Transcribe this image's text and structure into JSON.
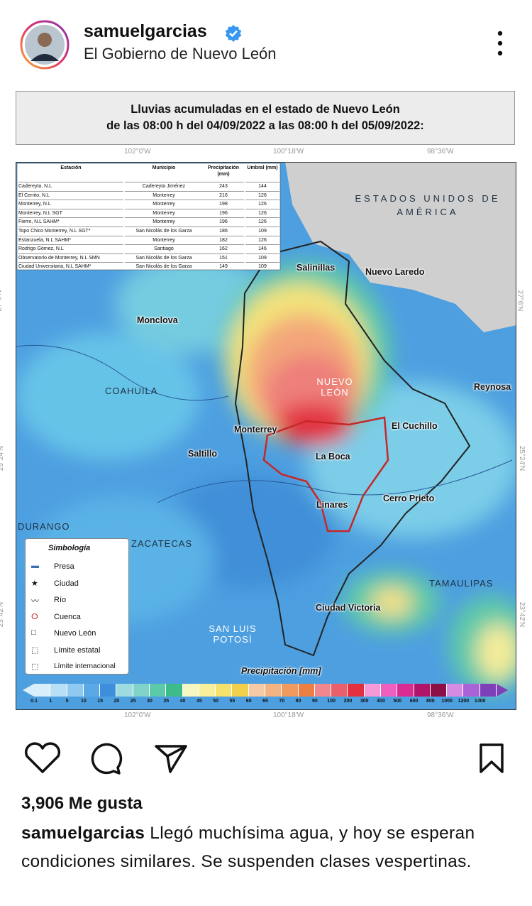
{
  "header": {
    "username": "samuelgarcias",
    "subtitle": "El Gobierno de Nuevo León"
  },
  "map": {
    "title": [
      "Lluvias acumuladas en el estado de Nuevo León",
      "de las 08:00 h del 04/09/2022 a las 08:00 h del 05/09/2022:"
    ],
    "longitudes": [
      "102°0'W",
      "100°18'W",
      "98°36'W"
    ],
    "latitudes": [
      "27°6'N",
      "25°24'N",
      "23°42'N"
    ],
    "table": {
      "columns": [
        "Estación",
        "Municipio",
        "Precipitación (mm)",
        "Umbral (mm)"
      ],
      "rows": [
        [
          "Cadereyta, N.L",
          "Cadereyta Jiménez",
          243,
          144
        ],
        [
          "El Cerrito, N.L",
          "Monterrey",
          216,
          126
        ],
        [
          "Monterrey, N.L",
          "Monterrey",
          198,
          126
        ],
        [
          "Monterrey, N.L SGT",
          "Monterrey",
          196,
          126
        ],
        [
          "Fierro, N.L SAHM*",
          "Monterrey",
          196,
          126
        ],
        [
          "Topo Chico Monterrey, N.L SGT*",
          "San Nicolás de los Garza",
          186,
          109
        ],
        [
          "Estanzuela, N.L SAHM*",
          "Monterrey",
          182,
          126
        ],
        [
          "Rodrigo Gómez, N.L",
          "Santiago",
          162,
          146
        ],
        [
          "Observatorio de Monterrey, N.L SMN",
          "San Nicolás de los Garza",
          151,
          109
        ],
        [
          "Ciudad Universitaria, N.L SAHM*",
          "San Nicolás de los Garza",
          149,
          109
        ]
      ]
    },
    "places": [
      "ESTADOS UNIDOS DE AMÉRICA",
      "Salinillas",
      "Nuevo Laredo",
      "Monclova",
      "Reynosa",
      "COAHUILA",
      "NUEVO LEÓN",
      "Monterrey",
      "El Cuchillo",
      "Saltillo",
      "La Boca",
      "Cerro Prieto",
      "Linares",
      "DURANGO",
      "ZACATECAS",
      "TAMAULIPAS",
      "Ciudad Victoria",
      "SAN LUIS POTOSÍ"
    ],
    "legend": {
      "title": "Simbología",
      "items": [
        "Presa",
        "Ciudad",
        "Río",
        "Cuenca",
        "Nuevo León",
        "Límite estatal",
        "Límite internacional"
      ]
    },
    "scale": {
      "title": "Precipitación [mm]",
      "labels": [
        0.1,
        1,
        5,
        10,
        15,
        20,
        25,
        30,
        35,
        40,
        45,
        50,
        55,
        60,
        65,
        70,
        80,
        90,
        100,
        200,
        300,
        400,
        500,
        600,
        800,
        1000,
        1200,
        1400
      ],
      "colors": [
        "#d8eefa",
        "#b7dff5",
        "#8fc9ef",
        "#5aa9e6",
        "#3d8fdb",
        "#9ddbe0",
        "#7fd3c8",
        "#5cc9a9",
        "#3dbb8a",
        "#f4f7c0",
        "#f7ef9a",
        "#f5e16c",
        "#f2d04b",
        "#f6c9a7",
        "#f3b383",
        "#f09a5f",
        "#ed7f43",
        "#f0868e",
        "#ea5f6c",
        "#e2303f",
        "#f59ad6",
        "#ef5fc0",
        "#d92c93",
        "#b01468",
        "#8c0f45",
        "#d58be3",
        "#a963d6",
        "#7e3fb8"
      ]
    }
  },
  "footer": {
    "likes": "3,906 Me gusta",
    "caption_user": "samuelgarcias",
    "caption": "Llegó muchísima agua, y hoy se esperan condiciones similares. Se suspenden clases vespertinas."
  }
}
